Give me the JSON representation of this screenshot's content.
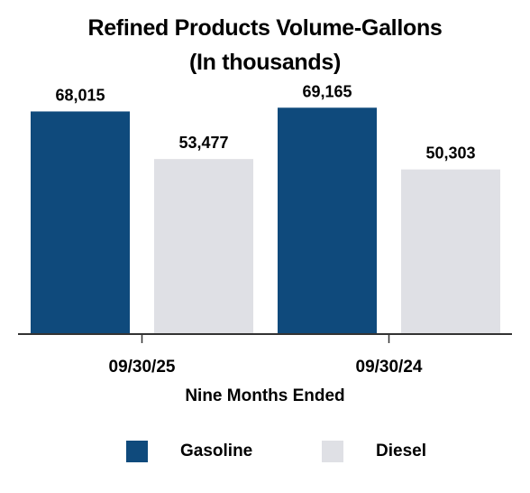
{
  "chart_data": {
    "type": "bar",
    "title": "Refined Products Volume-Gallons",
    "subtitle": "(In thousands)",
    "xlabel": "Nine Months Ended",
    "categories": [
      "09/30/25",
      "09/30/24"
    ],
    "series": [
      {
        "name": "Gasoline",
        "color": "#0f4a7c",
        "values": [
          68015,
          69165
        ],
        "labels": [
          "68,015",
          "69,165"
        ]
      },
      {
        "name": "Diesel",
        "color": "#dfe0e5",
        "values": [
          53477,
          50303
        ],
        "labels": [
          "53,477",
          "50,303"
        ]
      }
    ],
    "ylim": [
      0,
      80000
    ],
    "grid": false,
    "legend": "bottom"
  }
}
